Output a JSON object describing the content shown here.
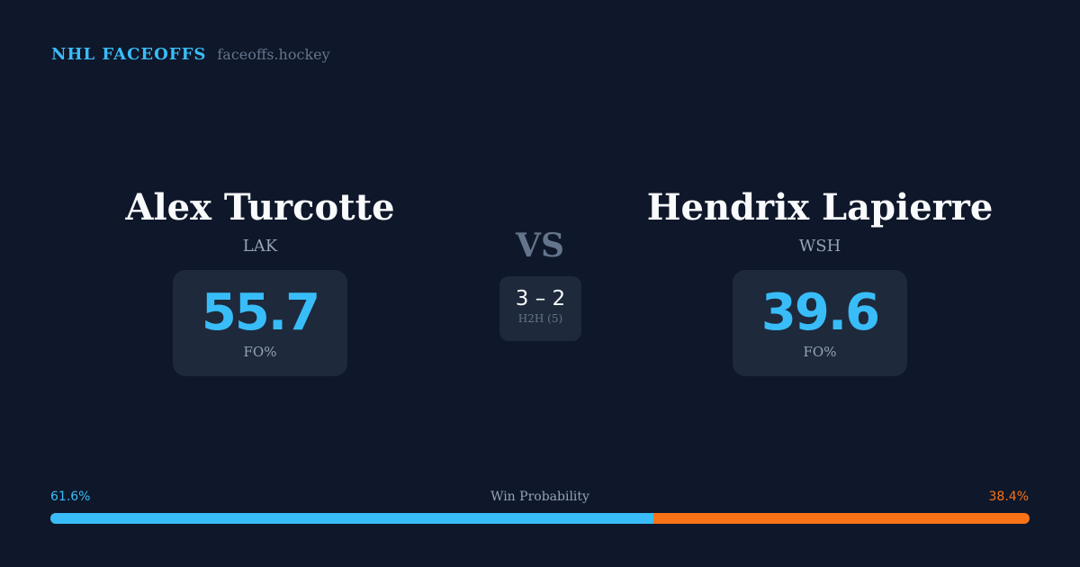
{
  "brand": {
    "title": "NHL FACEOFFS",
    "site": "faceoffs.hockey"
  },
  "left": {
    "name": "Alex Turcotte",
    "team": "LAK",
    "fo": "55.7",
    "fo_label": "FO%"
  },
  "right": {
    "name": "Hendrix Lapierre",
    "team": "WSH",
    "fo": "39.6",
    "fo_label": "FO%"
  },
  "vs": "VS",
  "h2h": {
    "score": "3 – 2",
    "label": "H2H (5)"
  },
  "win": {
    "label": "Win Probability",
    "left": "61.6%",
    "right": "38.4%",
    "left_value": 61.6,
    "colors": {
      "left": "#38bdf8",
      "right": "#f97316"
    }
  }
}
